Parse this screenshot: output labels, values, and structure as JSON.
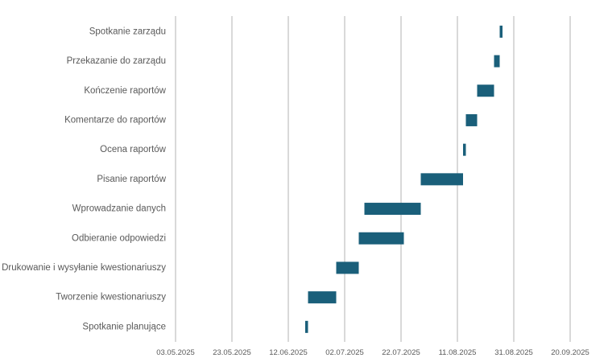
{
  "chart_data": {
    "type": "bar",
    "orientation": "horizontal-gantt",
    "title": "",
    "xlabel": "",
    "ylabel": "",
    "x_ticks": [
      "03.05.2025",
      "23.05.2025",
      "12.06.2025",
      "02.07.2025",
      "22.07.2025",
      "11.08.2025",
      "31.08.2025",
      "20.09.2025"
    ],
    "xlim": [
      "2025-05-03",
      "2025-09-20"
    ],
    "tick_interval_days": 20,
    "grid": true,
    "legend": "none",
    "color": "#1a5f7a",
    "tasks": [
      {
        "name": "Spotkanie zarządu",
        "start": "2025-08-26",
        "duration_days": 1
      },
      {
        "name": "Przekazanie do zarządu",
        "start": "2025-08-24",
        "duration_days": 2
      },
      {
        "name": "Kończenie raportów",
        "start": "2025-08-18",
        "duration_days": 6
      },
      {
        "name": "Komentarze do raportów",
        "start": "2025-08-14",
        "duration_days": 4
      },
      {
        "name": "Ocena raportów",
        "start": "2025-08-13",
        "duration_days": 1
      },
      {
        "name": "Pisanie raportów",
        "start": "2025-07-29",
        "duration_days": 15
      },
      {
        "name": "Wprowadzanie danych",
        "start": "2025-07-09",
        "duration_days": 20
      },
      {
        "name": "Odbieranie odpowiedzi",
        "start": "2025-07-07",
        "duration_days": 16
      },
      {
        "name": "Drukowanie i wysyłanie kwestionariuszy",
        "start": "2025-06-29",
        "duration_days": 8
      },
      {
        "name": "Tworzenie kwestionariuszy",
        "start": "2025-06-19",
        "duration_days": 10
      },
      {
        "name": "Spotkanie planujące",
        "start": "2025-06-18",
        "duration_days": 1
      }
    ]
  }
}
